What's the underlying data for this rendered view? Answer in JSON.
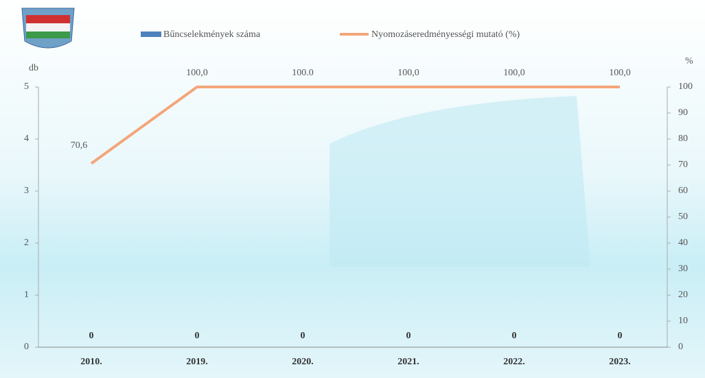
{
  "chart_data": {
    "type": "bar-line",
    "categories": [
      "2010.",
      "2019.",
      "2020.",
      "2021.",
      "2022.",
      "2023."
    ],
    "series": [
      {
        "name": "Bűncselekmények száma",
        "type": "bar",
        "color": "#4f81bd",
        "values": [
          0,
          0,
          0,
          0,
          0,
          0
        ]
      },
      {
        "name": "Nyomozáseredményességi mutató (%)",
        "type": "line",
        "axis": "y2",
        "color": "#f4a57a",
        "values": [
          70.6,
          100,
          100,
          100,
          100,
          100
        ],
        "value_labels": [
          "70,6",
          "100,0",
          "100.0",
          "100,0",
          "100,0",
          "100,0"
        ]
      }
    ],
    "y_label": "db",
    "y2_label": "%",
    "ylim": [
      0,
      5
    ],
    "yticks": [
      0,
      1,
      2,
      3,
      4,
      5
    ],
    "y2lim": [
      0,
      100
    ],
    "y2ticks": [
      0,
      10,
      20,
      30,
      40,
      50,
      60,
      70,
      80,
      90,
      100
    ],
    "legend": "top"
  }
}
